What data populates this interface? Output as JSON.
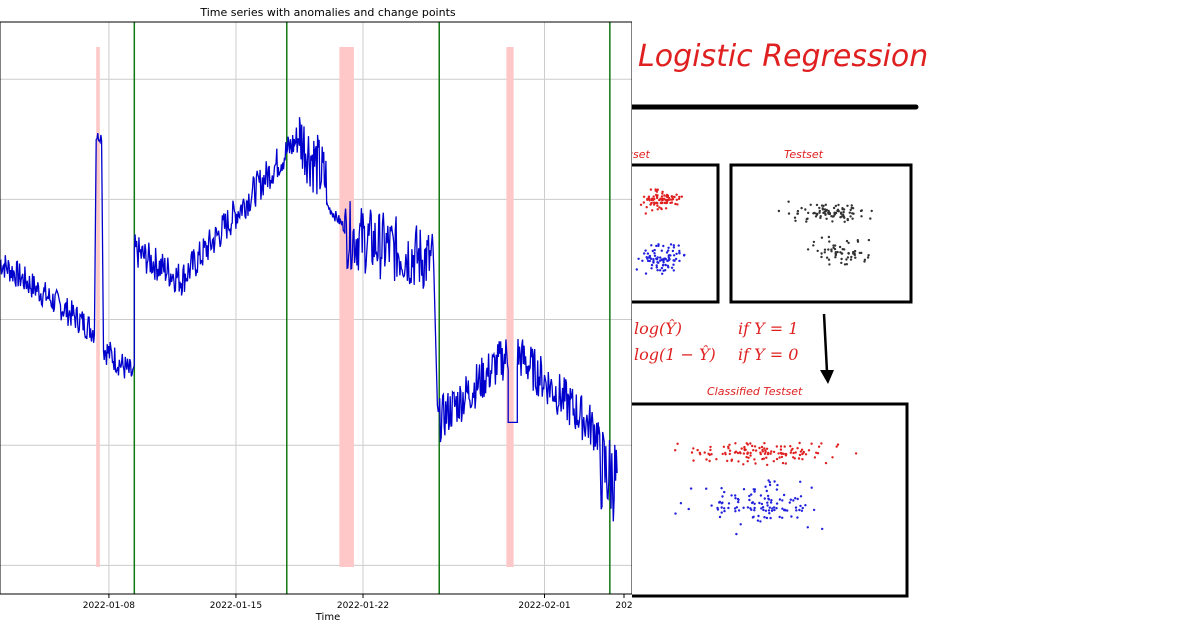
{
  "chart_data": [
    {
      "type": "line",
      "title": "Time series with anomalies and change points",
      "xlabel": "Time",
      "ylabel": "",
      "x_range": [
        "2022-01-02",
        "2022-02-05"
      ],
      "x_ticks": [
        "2022-01-08",
        "2022-01-15",
        "2022-01-22",
        "2022-02-01",
        "202"
      ],
      "grid": true,
      "series": [
        {
          "name": "series",
          "color": "#0000cc",
          "segments": [
            {
              "start": "2022-01-02",
              "end": "2022-01-07.2",
              "from": 0.58,
              "to": 0.46,
              "noise": 0.025
            },
            {
              "start": "2022-01-07.3",
              "end": "2022-01-07.6",
              "from": 0.8,
              "to": 0.8,
              "noise": 0.01
            },
            {
              "start": "2022-01-07.7",
              "end": "2022-01-09.4",
              "from": 0.43,
              "to": 0.38,
              "noise": 0.025
            },
            {
              "start": "2022-01-09.4",
              "end": "2022-01-12",
              "from": 0.6,
              "to": 0.55,
              "noise": 0.03
            },
            {
              "start": "2022-01-12",
              "end": "2022-01-18.5",
              "from": 0.55,
              "to": 0.8,
              "noise": 0.03
            },
            {
              "start": "2022-01-18.5",
              "end": "2022-01-20",
              "from": 0.8,
              "to": 0.72,
              "noise": 0.06
            },
            {
              "start": "2022-01-20",
              "end": "2022-01-21",
              "from": 0.68,
              "to": 0.64,
              "noise": 0.01
            },
            {
              "start": "2022-01-21",
              "end": "2022-01-25.9",
              "from": 0.63,
              "to": 0.58,
              "noise": 0.06
            },
            {
              "start": "2022-01-26.1",
              "end": "2022-01-30",
              "from": 0.3,
              "to": 0.42,
              "noise": 0.04
            },
            {
              "start": "2022-01-30",
              "end": "2022-01-30.5",
              "from": 0.3,
              "to": 0.3,
              "noise": 0.0
            },
            {
              "start": "2022-01-30.5",
              "end": "2022-02-04",
              "from": 0.42,
              "to": 0.28,
              "noise": 0.04
            },
            {
              "start": "2022-02-04",
              "end": "2022-02-05",
              "from": 0.22,
              "to": 0.2,
              "noise": 0.08
            }
          ]
        }
      ],
      "anomaly_bands": [
        {
          "start": "2022-01-07.3",
          "end": "2022-01-07.5"
        },
        {
          "start": "2022-01-20.7",
          "end": "2022-01-21.5"
        },
        {
          "start": "2022-01-29.9",
          "end": "2022-01-30.3"
        }
      ],
      "change_points": [
        "2022-01-09.4",
        "2022-01-17.8",
        "2022-01-26.2",
        "2022-02-04.6"
      ],
      "band_color": "#ffc8c8",
      "change_point_color": "#117711"
    }
  ],
  "right_panel": {
    "title": "Logistic Regression",
    "train_label": "gset",
    "test_label": "Testset",
    "classified_label": "Classified Testset",
    "formula_1": "log(Ŷ)",
    "formula_1_cond": "if Y = 1",
    "formula_2": "log(1 − Ŷ)",
    "formula_2_cond": "if Y = 0",
    "red": "#e02020",
    "blue": "#2020dd",
    "gray": "#333333"
  }
}
